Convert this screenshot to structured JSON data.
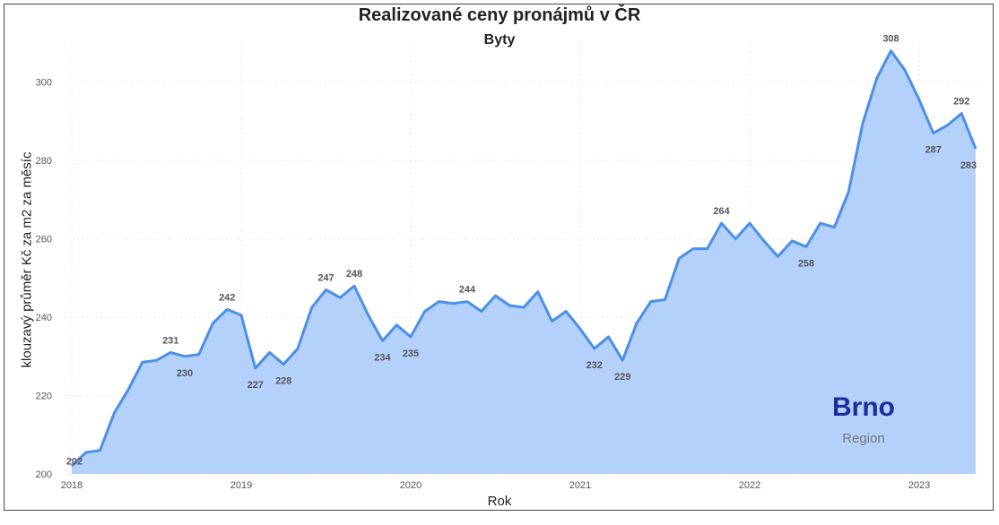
{
  "chart_data": {
    "type": "area",
    "title": "Realizované ceny pronájmů v ČR",
    "subtitle": "Byty",
    "xlabel": "Rok",
    "ylabel": "klouzavý průměr Kč za m2 za měsíc",
    "ylim": [
      200,
      310
    ],
    "yticks": [
      200,
      220,
      240,
      260,
      280,
      300
    ],
    "xticks": [
      "2018",
      "2019",
      "2020",
      "2021",
      "2022",
      "2023"
    ],
    "grid": true,
    "colors": {
      "line": "#4a8fe8",
      "fill": "#b3d1fb",
      "region": "#1a2f9a"
    },
    "annotation": {
      "region_name": "Brno",
      "region_caption": "Region"
    },
    "series": [
      {
        "x": [
          "2018-01",
          "2018-02",
          "2018-03",
          "2018-04",
          "2018-05",
          "2018-06",
          "2018-07",
          "2018-08",
          "2018-09",
          "2018-10",
          "2018-11",
          "2018-12",
          "2019-01",
          "2019-02",
          "2019-03",
          "2019-04",
          "2019-05",
          "2019-06",
          "2019-07",
          "2019-08",
          "2019-09",
          "2019-10",
          "2019-11",
          "2019-12",
          "2020-01",
          "2020-02",
          "2020-03",
          "2020-04",
          "2020-05",
          "2020-06",
          "2020-07",
          "2020-08",
          "2020-09",
          "2020-10",
          "2020-11",
          "2020-12",
          "2021-01",
          "2021-02",
          "2021-03",
          "2021-04",
          "2021-05",
          "2021-06",
          "2021-07",
          "2021-08",
          "2021-09",
          "2021-10",
          "2021-11",
          "2021-12",
          "2022-01",
          "2022-02",
          "2022-03",
          "2022-04",
          "2022-05",
          "2022-06",
          "2022-07",
          "2022-08",
          "2022-09",
          "2022-10",
          "2022-11",
          "2022-12",
          "2023-01",
          "2023-02",
          "2023-03",
          "2023-04",
          "2023-05"
        ],
        "values": [
          202,
          205.5,
          206,
          215.5,
          221.5,
          228.5,
          229,
          231,
          230,
          230.5,
          238.5,
          242,
          240.5,
          227,
          231,
          228,
          232,
          242.5,
          247,
          245,
          248,
          240.5,
          234,
          238,
          235,
          241.5,
          244,
          243.5,
          244,
          241.5,
          245.5,
          243,
          242.5,
          246.5,
          239,
          241.5,
          237,
          232,
          235,
          229,
          238.5,
          244,
          244.5,
          255,
          257.5,
          257.5,
          264,
          260,
          264,
          259.5,
          255.5,
          259.5,
          258,
          264,
          263,
          272,
          289.5,
          301,
          308,
          303,
          295.5,
          287,
          289,
          292,
          283
        ]
      }
    ],
    "data_labels": [
      {
        "x": "2018-01",
        "text": "202"
      },
      {
        "x": "2018-08",
        "text": "231"
      },
      {
        "x": "2018-09",
        "text": "230"
      },
      {
        "x": "2018-12",
        "text": "242"
      },
      {
        "x": "2019-02",
        "text": "227"
      },
      {
        "x": "2019-04",
        "text": "228"
      },
      {
        "x": "2019-07",
        "text": "247"
      },
      {
        "x": "2019-09",
        "text": "248"
      },
      {
        "x": "2019-11",
        "text": "234"
      },
      {
        "x": "2020-01",
        "text": "235"
      },
      {
        "x": "2020-05",
        "text": "244"
      },
      {
        "x": "2021-02",
        "text": "232"
      },
      {
        "x": "2021-04",
        "text": "229"
      },
      {
        "x": "2021-11",
        "text": "264"
      },
      {
        "x": "2022-05",
        "text": "258"
      },
      {
        "x": "2022-11",
        "text": "308"
      },
      {
        "x": "2023-02",
        "text": "287"
      },
      {
        "x": "2023-04",
        "text": "292"
      },
      {
        "x": "2023-05",
        "text": "283"
      }
    ]
  }
}
